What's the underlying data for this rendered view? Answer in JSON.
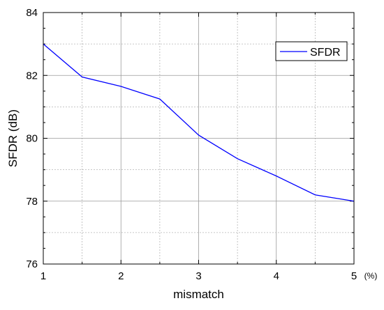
{
  "chart_data": {
    "type": "line",
    "xlabel": "mismatch",
    "ylabel": "SFDR (dB)",
    "x_unit_label": "(%)",
    "xlim": [
      1,
      5
    ],
    "ylim": [
      76,
      84
    ],
    "x_ticks": [
      "1",
      "2",
      "3",
      "4",
      "5"
    ],
    "y_ticks": [
      "76",
      "78",
      "80",
      "82",
      "84"
    ],
    "grid": true,
    "legend_position": "top-right",
    "series": [
      {
        "name": "SFDR",
        "color": "#0000ff",
        "x": [
          1,
          1.5,
          2,
          2.5,
          3,
          3.5,
          4,
          4.5,
          5
        ],
        "values": [
          83.0,
          81.95,
          81.65,
          81.25,
          80.1,
          79.35,
          78.8,
          78.2,
          78.0
        ]
      }
    ]
  }
}
